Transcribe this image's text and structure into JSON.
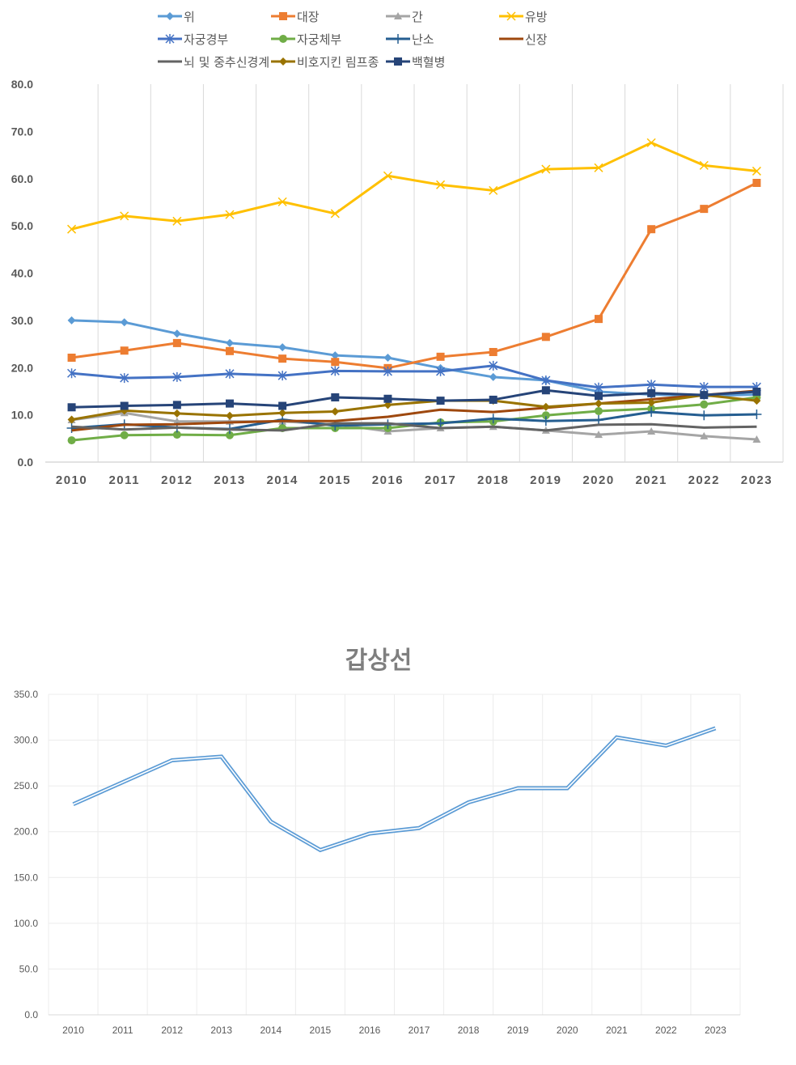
{
  "chart_data": [
    {
      "type": "line",
      "x": [
        "2010",
        "2011",
        "2012",
        "2013",
        "2014",
        "2015",
        "2016",
        "2017",
        "2018",
        "2019",
        "2020",
        "2021",
        "2022",
        "2023"
      ],
      "ylim": [
        0,
        80
      ],
      "yticks": [
        "0.0",
        "10.0",
        "20.0",
        "30.0",
        "40.0",
        "50.0",
        "60.0",
        "70.0",
        "80.0"
      ],
      "grid": "vertical",
      "legend_position": "top",
      "series": [
        {
          "name": "위",
          "color": "#5b9bd5",
          "marker": "diamond",
          "values": [
            30.0,
            29.6,
            27.2,
            25.2,
            24.3,
            22.6,
            22.1,
            19.9,
            18.0,
            17.3,
            14.9,
            14.3,
            14.0,
            14.3
          ]
        },
        {
          "name": "대장",
          "color": "#ed7d31",
          "marker": "square",
          "values": [
            22.1,
            23.6,
            25.2,
            23.5,
            21.9,
            21.2,
            19.9,
            22.3,
            23.3,
            26.5,
            30.3,
            49.3,
            53.6,
            59.1
          ]
        },
        {
          "name": "간",
          "color": "#a5a5a5",
          "marker": "triangle",
          "values": [
            8.9,
            10.4,
            8.6,
            8.6,
            8.6,
            8.0,
            6.5,
            7.2,
            7.5,
            6.7,
            5.8,
            6.5,
            5.5,
            4.8
          ]
        },
        {
          "name": "유방",
          "color": "#ffc000",
          "marker": "x",
          "values": [
            49.3,
            52.1,
            51.0,
            52.4,
            55.1,
            52.6,
            60.6,
            58.7,
            57.5,
            62.0,
            62.3,
            67.6,
            62.8,
            61.6
          ]
        },
        {
          "name": "자궁경부",
          "color": "#4472c4",
          "marker": "star",
          "values": [
            18.8,
            17.8,
            18.0,
            18.7,
            18.3,
            19.3,
            19.2,
            19.2,
            20.4,
            17.3,
            15.8,
            16.4,
            15.9,
            15.9
          ]
        },
        {
          "name": "자궁체부",
          "color": "#70ad47",
          "marker": "circle",
          "values": [
            4.6,
            5.7,
            5.8,
            5.7,
            7.2,
            7.2,
            7.2,
            8.4,
            8.6,
            9.9,
            10.8,
            11.3,
            12.2,
            13.7
          ]
        },
        {
          "name": "난소",
          "color": "#255e91",
          "marker": "plus",
          "values": [
            7.2,
            8.0,
            7.3,
            7.0,
            9.0,
            7.7,
            8.0,
            8.2,
            9.2,
            8.7,
            8.9,
            10.6,
            9.9,
            10.1
          ]
        },
        {
          "name": "신장",
          "color": "#9e480e",
          "marker": "none",
          "values": [
            6.7,
            7.9,
            8.0,
            8.4,
            8.7,
            8.7,
            9.6,
            11.1,
            10.6,
            11.5,
            12.4,
            13.3,
            14.2,
            15.1
          ]
        },
        {
          "name": "뇌 및 중추신경계",
          "color": "#636363",
          "marker": "none",
          "values": [
            7.5,
            6.9,
            7.3,
            6.9,
            6.7,
            8.2,
            8.2,
            7.2,
            7.5,
            6.7,
            7.9,
            8.0,
            7.3,
            7.5
          ]
        },
        {
          "name": "비호지킨 림프종",
          "color": "#997300",
          "marker": "diamond",
          "values": [
            9.0,
            10.9,
            10.3,
            9.8,
            10.4,
            10.7,
            12.1,
            13.0,
            13.0,
            11.7,
            12.4,
            12.6,
            14.2,
            13.0
          ]
        },
        {
          "name": "백혈병",
          "color": "#264478",
          "marker": "square",
          "values": [
            11.6,
            11.9,
            12.1,
            12.4,
            11.9,
            13.7,
            13.4,
            13.0,
            13.2,
            15.2,
            14.0,
            14.6,
            14.2,
            14.9
          ]
        }
      ]
    },
    {
      "type": "line",
      "title": "갑상선",
      "x": [
        "2010",
        "2011",
        "2012",
        "2013",
        "2014",
        "2015",
        "2016",
        "2017",
        "2018",
        "2019",
        "2020",
        "2021",
        "2022",
        "2023"
      ],
      "ylim": [
        0,
        350
      ],
      "yticks": [
        "0.0",
        "50.0",
        "100.0",
        "150.0",
        "200.0",
        "250.0",
        "300.0",
        "350.0"
      ],
      "grid": "both",
      "series": [
        {
          "color": "#5b9bd5",
          "style": "double",
          "values": [
            230,
            254,
            278,
            282,
            211,
            180,
            198,
            204,
            232,
            247.5,
            247.5,
            303,
            294,
            313
          ]
        }
      ]
    }
  ]
}
